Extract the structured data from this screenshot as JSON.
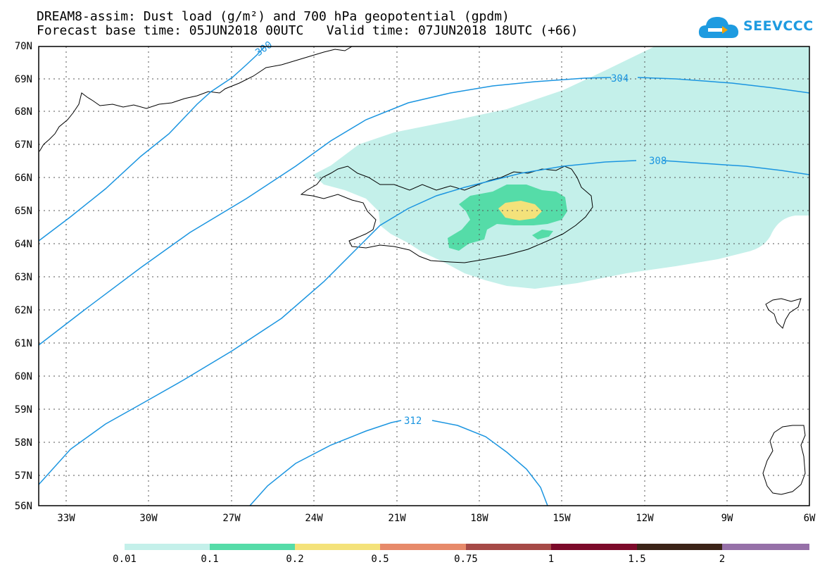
{
  "header": {
    "title_line1": "DREAM8-assim: Dust load (g/m²) and 700 hPa geopotential (gpdm)",
    "title_line2": "Forecast base time: 05JUN2018 00UTC   Valid time: 07JUN2018 18UTC (+66)"
  },
  "logo": {
    "text": "SEEVCCC",
    "icon": "cloud-icon"
  },
  "map": {
    "lat_labels": [
      "70N",
      "69N",
      "68N",
      "67N",
      "66N",
      "65N",
      "64N",
      "63N",
      "62N",
      "61N",
      "60N",
      "59N",
      "58N",
      "57N",
      "56N"
    ],
    "lon_labels": [
      "33W",
      "30W",
      "27W",
      "24W",
      "21W",
      "18W",
      "15W",
      "12W",
      "9W",
      "6W"
    ],
    "contour_labels": [
      "300",
      "304",
      "308",
      "312"
    ],
    "colors": {
      "coast": "#000000",
      "contour": "#1b95e0",
      "dust_001": "#c4f0ea",
      "dust_01": "#55dca8",
      "dust_02": "#f4e27a"
    }
  },
  "colorbar": {
    "labels": [
      "0.01",
      "0.1",
      "0.2",
      "0.5",
      "0.75",
      "1",
      "1.5",
      "2"
    ],
    "colors": [
      "#c4f0ea",
      "#55dca8",
      "#f4e27a",
      "#e78a6a",
      "#a64a47",
      "#7c0a2a",
      "#3c2418",
      "#9670a8"
    ]
  }
}
